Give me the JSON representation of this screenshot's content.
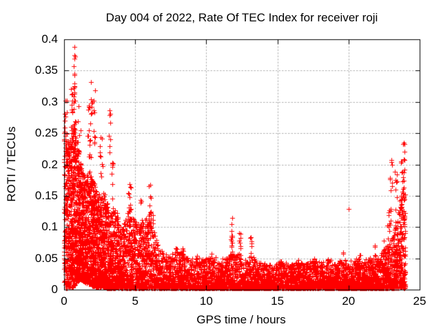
{
  "chart_data": {
    "type": "scatter",
    "title": "Day 004 of 2022, Rate Of TEC Index for receiver roji",
    "xlabel": "GPS time / hours",
    "ylabel": "ROTI / TECUs",
    "xlim": [
      0,
      25
    ],
    "ylim": [
      0,
      0.4
    ],
    "xtick_values": [
      0,
      5,
      10,
      15,
      20,
      25
    ],
    "xtick_labels": [
      "0",
      "5",
      "10",
      "15",
      "20",
      "25"
    ],
    "ytick_values": [
      0,
      0.05,
      0.1,
      0.15,
      0.2,
      0.25,
      0.3,
      0.35,
      0.4
    ],
    "ytick_labels": [
      "0",
      "0.05",
      "0.1",
      "0.15",
      "0.2",
      "0.25",
      "0.3",
      "0.35",
      "0.4"
    ],
    "grid": true,
    "legend": "none",
    "marker": "plus",
    "marker_color": "#ff0000",
    "marker_size_px": 7,
    "grid_color": "#b0b0b0",
    "axis_color": "#000000",
    "background": "#ffffff",
    "series_name": "ROTI",
    "data_time_range_hours": [
      0,
      24
    ],
    "max_value_tecu": 0.388,
    "point_cloud_model": {
      "seed": 20220104,
      "column_step_hours": 0.05,
      "density_profile": [
        {
          "t": 0.0,
          "top": 0.26,
          "n": 30,
          "exp": 1.25
        },
        {
          "t": 0.3,
          "top": 0.24,
          "n": 32,
          "exp": 1.3
        },
        {
          "t": 0.7,
          "top": 0.27,
          "n": 34,
          "exp": 1.3
        },
        {
          "t": 1.0,
          "top": 0.22,
          "n": 32,
          "exp": 1.4
        },
        {
          "t": 1.4,
          "top": 0.18,
          "n": 30,
          "exp": 1.5
        },
        {
          "t": 1.8,
          "top": 0.19,
          "n": 30,
          "exp": 1.5
        },
        {
          "t": 2.1,
          "top": 0.17,
          "n": 28,
          "exp": 1.5
        },
        {
          "t": 2.5,
          "top": 0.15,
          "n": 26,
          "exp": 1.6
        },
        {
          "t": 2.8,
          "top": 0.16,
          "n": 24,
          "exp": 1.6
        },
        {
          "t": 3.2,
          "top": 0.12,
          "n": 22,
          "exp": 1.7
        },
        {
          "t": 3.6,
          "top": 0.13,
          "n": 20,
          "exp": 1.8
        },
        {
          "t": 4.0,
          "top": 0.1,
          "n": 18,
          "exp": 1.8
        },
        {
          "t": 4.6,
          "top": 0.13,
          "n": 17,
          "exp": 1.8
        },
        {
          "t": 5.0,
          "top": 0.11,
          "n": 16,
          "exp": 1.9
        },
        {
          "t": 5.4,
          "top": 0.1,
          "n": 15,
          "exp": 1.9
        },
        {
          "t": 6.0,
          "top": 0.13,
          "n": 15,
          "exp": 1.8
        },
        {
          "t": 6.35,
          "top": 0.09,
          "n": 14,
          "exp": 2.0
        },
        {
          "t": 6.7,
          "top": 0.065,
          "n": 13,
          "exp": 2.0
        },
        {
          "t": 7.2,
          "top": 0.055,
          "n": 12,
          "exp": 2.1
        },
        {
          "t": 7.9,
          "top": 0.062,
          "n": 12,
          "exp": 2.1
        },
        {
          "t": 8.35,
          "top": 0.058,
          "n": 12,
          "exp": 2.1
        },
        {
          "t": 8.8,
          "top": 0.05,
          "n": 11,
          "exp": 2.1
        },
        {
          "t": 9.3,
          "top": 0.054,
          "n": 11,
          "exp": 2.1
        },
        {
          "t": 9.8,
          "top": 0.048,
          "n": 11,
          "exp": 2.2
        },
        {
          "t": 10.3,
          "top": 0.054,
          "n": 11,
          "exp": 2.1
        },
        {
          "t": 10.9,
          "top": 0.05,
          "n": 11,
          "exp": 2.2
        },
        {
          "t": 11.5,
          "top": 0.05,
          "n": 11,
          "exp": 2.1
        },
        {
          "t": 11.8,
          "top": 0.062,
          "n": 12,
          "exp": 2.0
        },
        {
          "t": 12.1,
          "top": 0.055,
          "n": 11,
          "exp": 2.1
        },
        {
          "t": 12.4,
          "top": 0.058,
          "n": 11,
          "exp": 2.1
        },
        {
          "t": 12.8,
          "top": 0.045,
          "n": 11,
          "exp": 2.2
        },
        {
          "t": 13.15,
          "top": 0.055,
          "n": 11,
          "exp": 2.1
        },
        {
          "t": 13.5,
          "top": 0.045,
          "n": 11,
          "exp": 2.2
        },
        {
          "t": 14.0,
          "top": 0.042,
          "n": 11,
          "exp": 2.2
        },
        {
          "t": 14.6,
          "top": 0.04,
          "n": 11,
          "exp": 2.2
        },
        {
          "t": 15.2,
          "top": 0.047,
          "n": 11,
          "exp": 2.2
        },
        {
          "t": 15.8,
          "top": 0.04,
          "n": 11,
          "exp": 2.2
        },
        {
          "t": 16.45,
          "top": 0.047,
          "n": 11,
          "exp": 2.2
        },
        {
          "t": 17.0,
          "top": 0.042,
          "n": 11,
          "exp": 2.2
        },
        {
          "t": 17.6,
          "top": 0.049,
          "n": 11,
          "exp": 2.2
        },
        {
          "t": 18.1,
          "top": 0.044,
          "n": 11,
          "exp": 2.2
        },
        {
          "t": 18.55,
          "top": 0.05,
          "n": 11,
          "exp": 2.2
        },
        {
          "t": 19.1,
          "top": 0.042,
          "n": 11,
          "exp": 2.2
        },
        {
          "t": 19.6,
          "top": 0.051,
          "n": 11,
          "exp": 2.2
        },
        {
          "t": 20.1,
          "top": 0.046,
          "n": 11,
          "exp": 2.2
        },
        {
          "t": 20.6,
          "top": 0.05,
          "n": 11,
          "exp": 2.2
        },
        {
          "t": 21.1,
          "top": 0.048,
          "n": 12,
          "exp": 2.2
        },
        {
          "t": 21.6,
          "top": 0.054,
          "n": 12,
          "exp": 2.1
        },
        {
          "t": 22.0,
          "top": 0.05,
          "n": 12,
          "exp": 2.1
        },
        {
          "t": 22.4,
          "top": 0.063,
          "n": 13,
          "exp": 2.0
        },
        {
          "t": 22.8,
          "top": 0.073,
          "n": 13,
          "exp": 1.9
        },
        {
          "t": 23.1,
          "top": 0.085,
          "n": 14,
          "exp": 1.7
        },
        {
          "t": 23.4,
          "top": 0.11,
          "n": 16,
          "exp": 1.55
        },
        {
          "t": 23.6,
          "top": 0.145,
          "n": 17,
          "exp": 1.45
        },
        {
          "t": 23.8,
          "top": 0.165,
          "n": 18,
          "exp": 1.4
        },
        {
          "t": 23.95,
          "top": 0.16,
          "n": 18,
          "exp": 1.4
        },
        {
          "t": 24.0,
          "top": 0.12,
          "n": 16,
          "exp": 1.5
        }
      ],
      "floor_profile": [
        {
          "t": 0.0,
          "v": 0.002
        },
        {
          "t": 0.6,
          "v": 0.003
        },
        {
          "t": 0.9,
          "v": 0.012
        },
        {
          "t": 1.1,
          "v": 0.016
        },
        {
          "t": 1.5,
          "v": 0.011
        },
        {
          "t": 2.0,
          "v": 0.005
        },
        {
          "t": 2.5,
          "v": 0.003
        },
        {
          "t": 3.0,
          "v": 0.002
        },
        {
          "t": 24.0,
          "v": 0.002
        }
      ],
      "spike_clusters": [
        {
          "t": 0.12,
          "dt": 0.1,
          "vmin": 0.2,
          "vmax": 0.305,
          "n": 10
        },
        {
          "t": 0.6,
          "dt": 0.22,
          "vmin": 0.25,
          "vmax": 0.33,
          "n": 20
        },
        {
          "t": 0.73,
          "dt": 0.05,
          "vmin": 0.3,
          "vmax": 0.375,
          "n": 8
        },
        {
          "t": 1.05,
          "dt": 0.1,
          "vmin": 0.22,
          "vmax": 0.3,
          "n": 8
        },
        {
          "t": 1.75,
          "dt": 0.18,
          "vmin": 0.21,
          "vmax": 0.3,
          "n": 16
        },
        {
          "t": 1.95,
          "dt": 0.08,
          "vmin": 0.28,
          "vmax": 0.332,
          "n": 5
        },
        {
          "t": 2.15,
          "dt": 0.1,
          "vmin": 0.23,
          "vmax": 0.318,
          "n": 8
        },
        {
          "t": 2.6,
          "dt": 0.15,
          "vmin": 0.17,
          "vmax": 0.25,
          "n": 10
        },
        {
          "t": 3.2,
          "dt": 0.06,
          "vmin": 0.21,
          "vmax": 0.287,
          "n": 5
        },
        {
          "t": 3.45,
          "dt": 0.15,
          "vmin": 0.13,
          "vmax": 0.21,
          "n": 10
        },
        {
          "t": 4.6,
          "dt": 0.18,
          "vmin": 0.1,
          "vmax": 0.17,
          "n": 16
        },
        {
          "t": 5.4,
          "dt": 0.12,
          "vmin": 0.1,
          "vmax": 0.145,
          "n": 8
        },
        {
          "t": 6.05,
          "dt": 0.12,
          "vmin": 0.09,
          "vmax": 0.168,
          "n": 14
        },
        {
          "t": 6.3,
          "dt": 0.08,
          "vmin": 0.08,
          "vmax": 0.12,
          "n": 6
        },
        {
          "t": 7.9,
          "dt": 0.08,
          "vmin": 0.05,
          "vmax": 0.072,
          "n": 5
        },
        {
          "t": 8.35,
          "dt": 0.08,
          "vmin": 0.05,
          "vmax": 0.068,
          "n": 5
        },
        {
          "t": 9.3,
          "dt": 0.07,
          "vmin": 0.04,
          "vmax": 0.058,
          "n": 4
        },
        {
          "t": 10.35,
          "dt": 0.07,
          "vmin": 0.04,
          "vmax": 0.06,
          "n": 4
        },
        {
          "t": 11.8,
          "dt": 0.07,
          "vmin": 0.06,
          "vmax": 0.115,
          "n": 11
        },
        {
          "t": 12.35,
          "dt": 0.07,
          "vmin": 0.055,
          "vmax": 0.095,
          "n": 8
        },
        {
          "t": 13.15,
          "dt": 0.07,
          "vmin": 0.05,
          "vmax": 0.088,
          "n": 7
        },
        {
          "t": 15.25,
          "dt": 0.06,
          "vmin": 0.038,
          "vmax": 0.056,
          "n": 5
        },
        {
          "t": 16.45,
          "dt": 0.06,
          "vmin": 0.038,
          "vmax": 0.052,
          "n": 4
        },
        {
          "t": 17.6,
          "dt": 0.06,
          "vmin": 0.04,
          "vmax": 0.055,
          "n": 4
        },
        {
          "t": 18.55,
          "dt": 0.07,
          "vmin": 0.04,
          "vmax": 0.058,
          "n": 5
        },
        {
          "t": 19.6,
          "dt": 0.07,
          "vmin": 0.04,
          "vmax": 0.06,
          "n": 5
        },
        {
          "t": 20.8,
          "dt": 0.06,
          "vmin": 0.04,
          "vmax": 0.056,
          "n": 4
        },
        {
          "t": 21.85,
          "dt": 0.08,
          "vmin": 0.05,
          "vmax": 0.075,
          "n": 6
        },
        {
          "t": 22.45,
          "dt": 0.08,
          "vmin": 0.05,
          "vmax": 0.078,
          "n": 6
        },
        {
          "t": 22.8,
          "dt": 0.1,
          "vmin": 0.07,
          "vmax": 0.13,
          "n": 8
        },
        {
          "t": 23.0,
          "dt": 0.12,
          "vmin": 0.09,
          "vmax": 0.225,
          "n": 12
        },
        {
          "t": 23.35,
          "dt": 0.1,
          "vmin": 0.1,
          "vmax": 0.2,
          "n": 10
        },
        {
          "t": 23.7,
          "dt": 0.1,
          "vmin": 0.13,
          "vmax": 0.21,
          "n": 12
        },
        {
          "t": 23.9,
          "dt": 0.07,
          "vmin": 0.15,
          "vmax": 0.235,
          "n": 10
        }
      ],
      "outlier_points": [
        [
          0.73,
          0.388
        ],
        [
          0.78,
          0.372
        ],
        [
          0.7,
          0.357
        ],
        [
          0.75,
          0.345
        ],
        [
          0.73,
          0.33
        ],
        [
          1.9,
          0.332
        ],
        [
          2.2,
          0.318
        ],
        [
          3.18,
          0.287
        ],
        [
          3.22,
          0.279
        ],
        [
          3.24,
          0.24
        ],
        [
          4.6,
          0.169
        ],
        [
          6.05,
          0.168
        ],
        [
          11.82,
          0.115
        ],
        [
          20.0,
          0.129
        ],
        [
          23.9,
          0.235
        ],
        [
          23.85,
          0.232
        ]
      ]
    }
  }
}
